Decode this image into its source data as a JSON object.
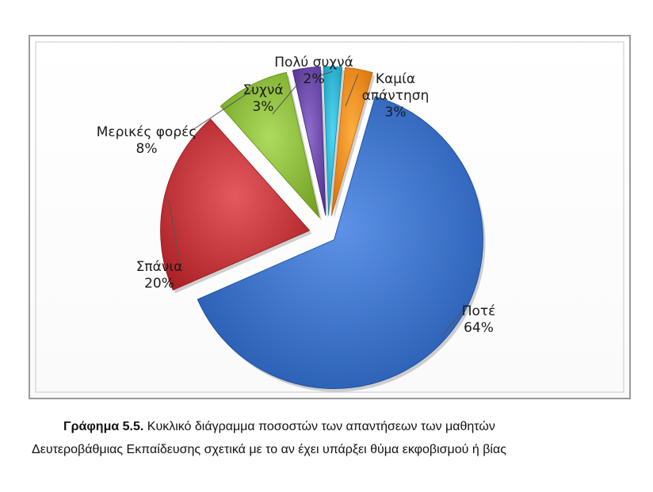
{
  "chart_data": {
    "type": "pie",
    "slices": [
      {
        "label": "Ποτέ",
        "value": 64,
        "value_label": "64%",
        "color": "#3a6fc4"
      },
      {
        "label": "Σπάνια",
        "value": 20,
        "value_label": "20%",
        "color": "#c0363a"
      },
      {
        "label": "Μερικές φορές",
        "value": 8,
        "value_label": "8%",
        "color": "#8ab83a"
      },
      {
        "label": "Συχνά",
        "value": 3,
        "value_label": "3%",
        "color": "#6a49a8"
      },
      {
        "label": "Πολύ συχνά",
        "value": 2,
        "value_label": "2%",
        "color": "#2fb3d0"
      },
      {
        "label": "Καμία απάντηση",
        "label_lines": [
          "Καμία",
          "απάντηση"
        ],
        "value": 3,
        "value_label": "3%",
        "color": "#f08a1e"
      }
    ],
    "exploded": true,
    "style": "3D"
  },
  "caption": {
    "prefix": "Γράφημα 5.5.",
    "line1": " Κυκλικό διάγραμμα ποσοστών των απαντήσεων των μαθητών",
    "line2": "Δευτεροβάθμιας Εκπαίδευσης σχετικά με το αν έχει υπάρξει θύμα εκφοβισμού ή βίας"
  }
}
